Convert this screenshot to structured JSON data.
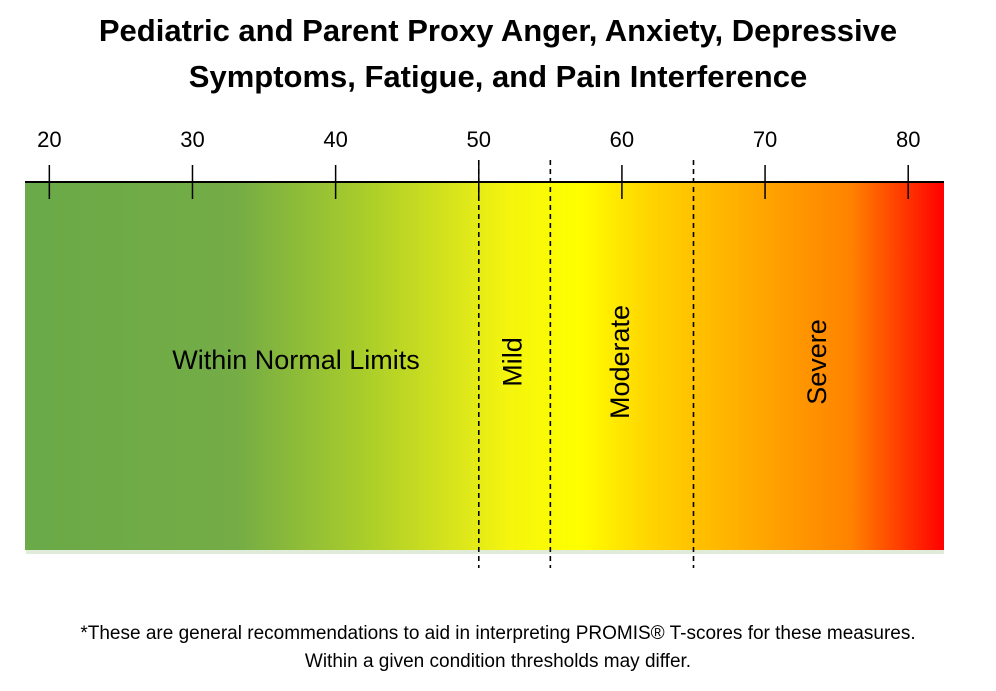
{
  "title": {
    "line1": "Pediatric and Parent Proxy Anger, Anxiety, Depressive",
    "line2": "Symptoms, Fatigue, and Pain Interference"
  },
  "footnote": {
    "line1": "*These are general recommendations to aid in interpreting PROMIS® T-scores for these measures.",
    "line2": "Within a given condition thresholds may differ."
  },
  "chart_data": {
    "type": "heatmap",
    "axis_ticks": [
      20,
      30,
      40,
      50,
      60,
      70,
      80
    ],
    "xlim": [
      18.3,
      82.5
    ],
    "thresholds": [
      50,
      55,
      65
    ],
    "bands": [
      {
        "label": "Within Normal Limits",
        "from": 18.3,
        "to": 50,
        "orientation": "horizontal"
      },
      {
        "label": "Mild",
        "from": 50,
        "to": 55,
        "orientation": "vertical"
      },
      {
        "label": "Moderate",
        "from": 55,
        "to": 65,
        "orientation": "vertical"
      },
      {
        "label": "Severe",
        "from": 65,
        "to": 82.5,
        "orientation": "vertical"
      }
    ],
    "gradient_stops": [
      {
        "value": 18.3,
        "color": "#6aaa48"
      },
      {
        "value": 33,
        "color": "#74ac46"
      },
      {
        "value": 42,
        "color": "#a9cd2a"
      },
      {
        "value": 48,
        "color": "#d6e31d"
      },
      {
        "value": 52,
        "color": "#f4f40e"
      },
      {
        "value": 57,
        "color": "#ffff00"
      },
      {
        "value": 62,
        "color": "#ffd400"
      },
      {
        "value": 68,
        "color": "#ffb000"
      },
      {
        "value": 76,
        "color": "#ff8200"
      },
      {
        "value": 82.5,
        "color": "#ff0000"
      }
    ]
  }
}
